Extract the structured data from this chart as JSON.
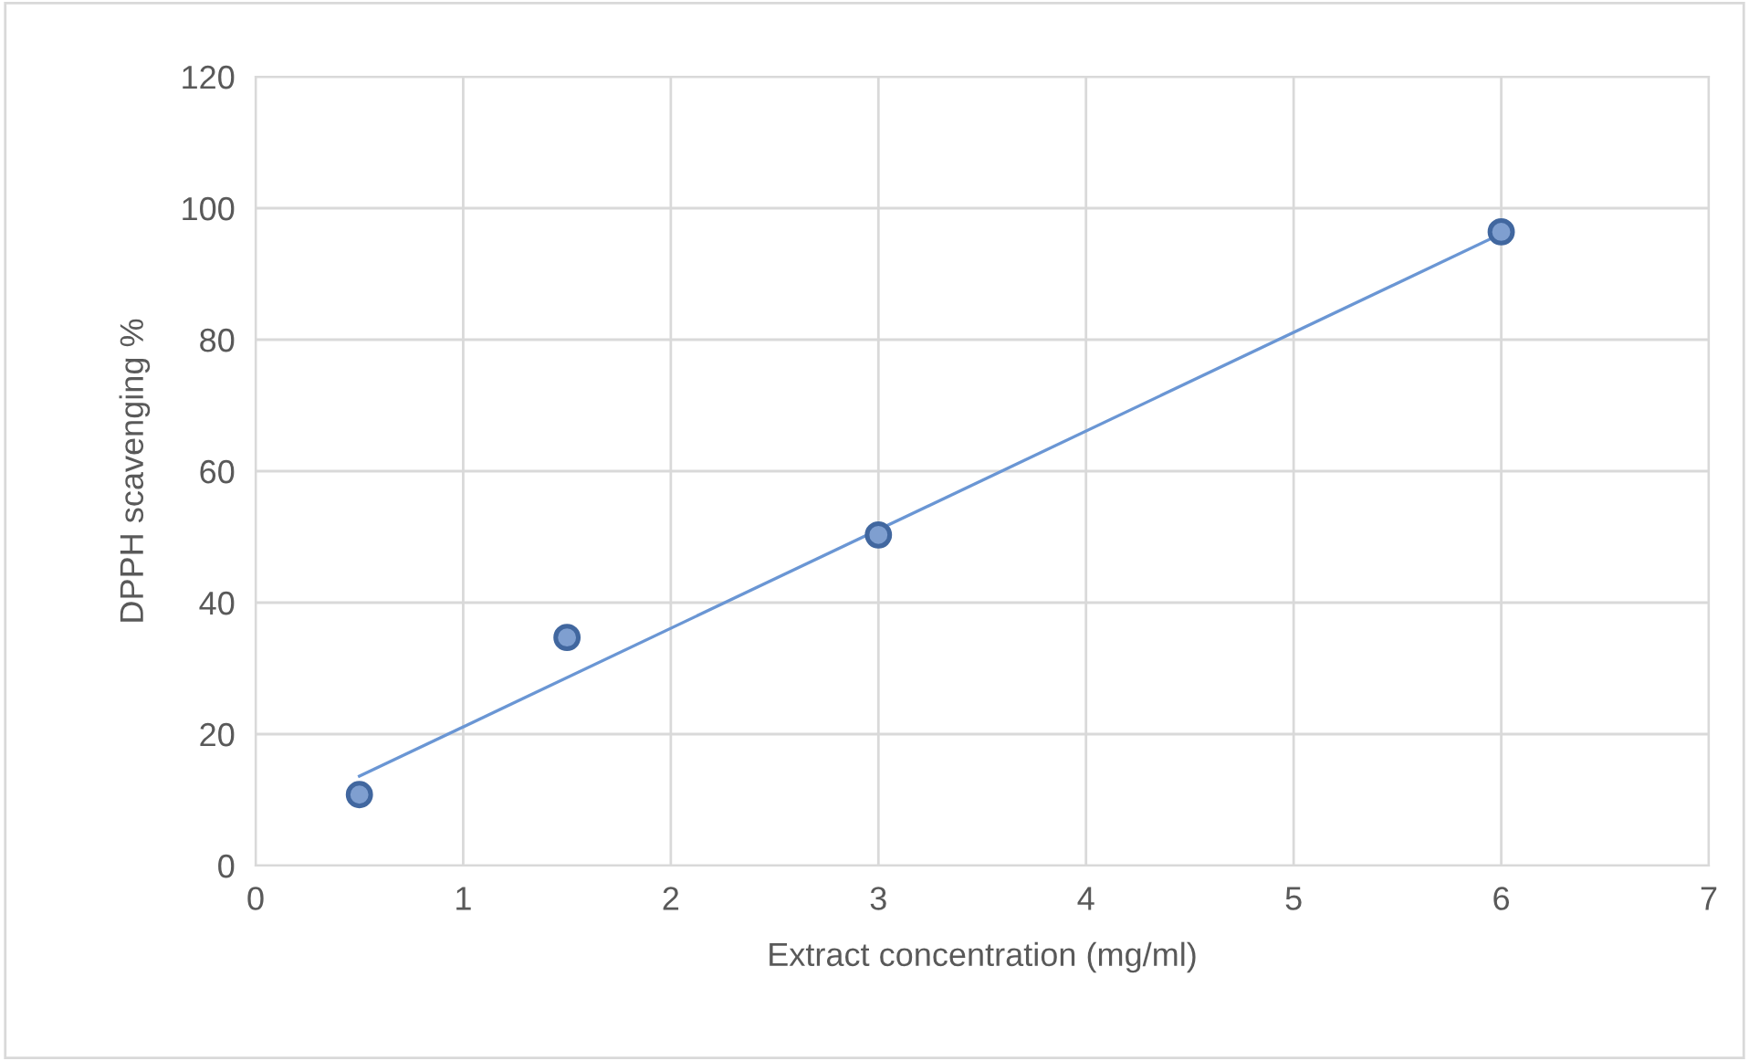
{
  "chart_data": {
    "type": "scatter",
    "xlabel": "Extract concentration (mg/ml)",
    "ylabel": "DPPH scavenging %",
    "xlim": [
      0,
      7
    ],
    "xticks": [
      0,
      1,
      2,
      3,
      4,
      5,
      6,
      7
    ],
    "ylim": [
      0,
      120
    ],
    "yticks": [
      0,
      20,
      40,
      60,
      80,
      100,
      120
    ],
    "grid": true,
    "marker": "circle",
    "series": [
      {
        "color": "#7f9fd0",
        "x": [
          0.5,
          1.5,
          3,
          6
        ],
        "values": [
          10.8,
          34.7,
          50.3,
          96.4
        ]
      },
      {
        "type": "line",
        "color": "#6a96d4",
        "line_style": "solid",
        "marker": "none",
        "x": [
          0.5,
          6
        ],
        "values": [
          13.6,
          96.1
        ]
      }
    ]
  }
}
